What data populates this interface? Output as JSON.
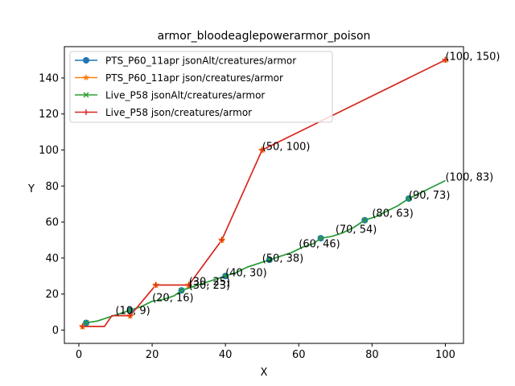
{
  "chart_data": {
    "type": "line",
    "title": "armor_bloodeaglepowerarmor_poison",
    "xlabel": "X",
    "ylabel": "Y",
    "xlim": [
      -3.95,
      104.95
    ],
    "ylim": [
      -7.4,
      157.4
    ],
    "xticks": [
      0,
      20,
      40,
      60,
      80,
      100
    ],
    "yticks": [
      0,
      20,
      40,
      60,
      80,
      100,
      120,
      140
    ],
    "grid": false,
    "legend_position": "top-left",
    "series": [
      {
        "name": "PTS_P60_11apr jsonAlt/creatures/armor",
        "color": "#1f77b4",
        "marker": "circle",
        "x": [
          2,
          5,
          8,
          11,
          14,
          17,
          20,
          23,
          26,
          28,
          31,
          34,
          37,
          40,
          43,
          46,
          49,
          52,
          55,
          58,
          61,
          64,
          66,
          69,
          72,
          75,
          78,
          81,
          84,
          87,
          90,
          93,
          96,
          100
        ],
        "y": [
          4,
          5,
          7,
          9,
          11,
          13,
          16,
          17,
          19,
          22,
          24,
          26,
          28,
          30,
          32,
          35,
          37,
          39,
          41,
          43,
          46,
          48,
          51,
          52,
          54,
          57,
          61,
          63,
          66,
          69,
          73,
          76,
          79,
          83
        ]
      },
      {
        "name": "PTS_P60_11apr json/creatures/armor",
        "color": "#ff7f0e",
        "marker": "star",
        "x": [
          1,
          7,
          9,
          14,
          21,
          30,
          39,
          50,
          100
        ],
        "y": [
          2,
          2,
          8,
          8,
          25,
          25,
          50,
          100,
          150
        ]
      },
      {
        "name": "Live_P58 jsonAlt/creatures/armor",
        "color": "#2ca02c",
        "marker": "x",
        "x": [
          2,
          5,
          8,
          11,
          14,
          17,
          20,
          23,
          26,
          28,
          31,
          34,
          37,
          40,
          43,
          46,
          49,
          52,
          55,
          58,
          61,
          64,
          66,
          69,
          72,
          75,
          78,
          81,
          84,
          87,
          90,
          93,
          96,
          100
        ],
        "y": [
          4,
          5,
          7,
          9,
          11,
          13,
          16,
          17,
          19,
          22,
          24,
          26,
          28,
          30,
          32,
          35,
          37,
          39,
          41,
          43,
          46,
          48,
          51,
          52,
          54,
          57,
          61,
          63,
          66,
          69,
          73,
          76,
          79,
          83
        ]
      },
      {
        "name": "Live_P58 json/creatures/armor",
        "color": "#d62728",
        "marker": "plus",
        "x": [
          1,
          7,
          9,
          14,
          21,
          30,
          39,
          50,
          100
        ],
        "y": [
          2,
          2,
          8,
          8,
          25,
          25,
          50,
          100,
          150
        ]
      }
    ],
    "marker_points": {
      "circles": [
        [
          2,
          4
        ],
        [
          14,
          11
        ],
        [
          28,
          22
        ],
        [
          40,
          30
        ],
        [
          52,
          39
        ],
        [
          66,
          51
        ],
        [
          78,
          61
        ],
        [
          90,
          73
        ]
      ],
      "stars": [
        [
          1,
          2
        ],
        [
          14,
          8
        ],
        [
          21,
          25
        ],
        [
          30,
          25
        ],
        [
          39,
          50
        ],
        [
          50,
          100
        ],
        [
          100,
          150
        ]
      ]
    },
    "annotations": [
      {
        "text": "(10, 9)",
        "x": 10,
        "y": 9
      },
      {
        "text": "(20, 16)",
        "x": 20,
        "y": 16
      },
      {
        "text": "(30, 25)",
        "x": 30,
        "y": 25
      },
      {
        "text": "(30, 23)",
        "x": 30,
        "y": 23
      },
      {
        "text": "(40, 30)",
        "x": 40,
        "y": 30
      },
      {
        "text": "(50, 38)",
        "x": 50,
        "y": 38
      },
      {
        "text": "(50, 100)",
        "x": 50,
        "y": 100
      },
      {
        "text": "(60, 46)",
        "x": 60,
        "y": 46
      },
      {
        "text": "(70, 54)",
        "x": 70,
        "y": 54
      },
      {
        "text": "(80, 63)",
        "x": 80,
        "y": 63
      },
      {
        "text": "(90, 73)",
        "x": 90,
        "y": 73
      },
      {
        "text": "(100, 83)",
        "x": 100,
        "y": 83
      },
      {
        "text": "(100, 150)",
        "x": 100,
        "y": 150
      }
    ]
  }
}
